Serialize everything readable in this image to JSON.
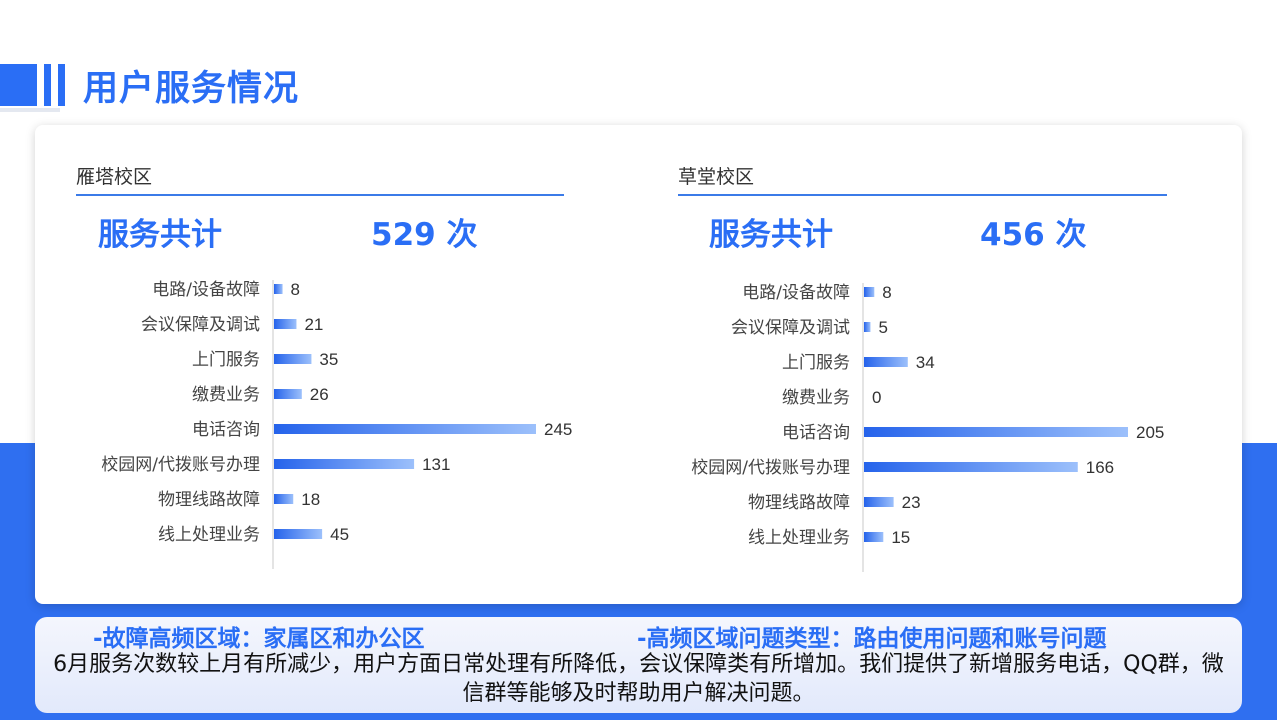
{
  "page": {
    "title": "用户服务情况"
  },
  "colors": {
    "accent": "#2a6ef5",
    "band": "#2f6ff0",
    "bar_start": "#2563eb",
    "bar_end": "#9cc0fb"
  },
  "campuses": [
    {
      "name": "雁塔校区",
      "total_label": "服务共计",
      "total_value": "529 次"
    },
    {
      "name": "草堂校区",
      "total_label": "服务共计",
      "total_value": "456  次"
    }
  ],
  "chart_data": [
    {
      "type": "bar",
      "orientation": "horizontal",
      "title": "雁塔校区",
      "categories": [
        "电路/设备故障",
        "会议保障及调试",
        "上门服务",
        "缴费业务",
        "电话咨询",
        "校园网/代拨账号办理",
        "物理线路故障",
        "线上处理业务"
      ],
      "values": [
        8,
        21,
        35,
        26,
        245,
        131,
        18,
        45
      ],
      "xlim": [
        0,
        245
      ],
      "grid": false,
      "data_labels": true
    },
    {
      "type": "bar",
      "orientation": "horizontal",
      "title": "草堂校区",
      "categories": [
        "电路/设备故障",
        "会议保障及调试",
        "上门服务",
        "缴费业务",
        "电话咨询",
        "校园网/代拨账号办理",
        "物理线路故障",
        "线上处理业务"
      ],
      "values": [
        8,
        5,
        34,
        0,
        205,
        166,
        23,
        15
      ],
      "xlim": [
        0,
        205
      ],
      "grid": false,
      "data_labels": true
    }
  ],
  "summary": {
    "highlight_left": "-故障高频区域：家属区和办公区",
    "highlight_right": "-高频区域问题类型：路由使用问题和账号问题",
    "text": "6月服务次数较上月有所减少，用户方面日常处理有所降低，会议保障类有所增加。我们提供了新增服务电话，QQ群，微信群等能够及时帮助用户解决问题。"
  }
}
